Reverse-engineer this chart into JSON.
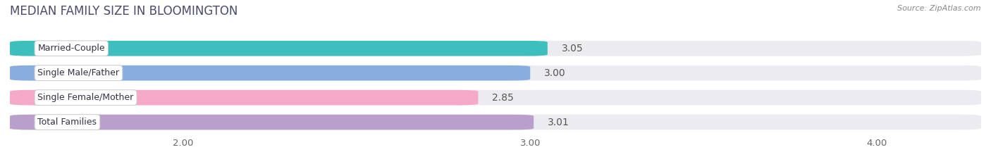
{
  "title": "MEDIAN FAMILY SIZE IN BLOOMINGTON",
  "source": "Source: ZipAtlas.com",
  "categories": [
    "Married-Couple",
    "Single Male/Father",
    "Single Female/Mother",
    "Total Families"
  ],
  "values": [
    3.05,
    3.0,
    2.85,
    3.01
  ],
  "bar_colors": [
    "#3dbfbe",
    "#8aaddf",
    "#f5a8c8",
    "#b89fcc"
  ],
  "xlim_left": 1.5,
  "xlim_right": 4.3,
  "xticks": [
    2.0,
    3.0,
    4.0
  ],
  "xtick_labels": [
    "2.00",
    "3.00",
    "4.00"
  ],
  "value_fontsize": 10,
  "label_fontsize": 9,
  "title_fontsize": 12,
  "title_color": "#4a4a6a",
  "background_color": "#ffffff",
  "bar_bg_color": "#ebebf0",
  "bar_height": 0.62,
  "bar_gap": 0.18,
  "source_color": "#888888"
}
